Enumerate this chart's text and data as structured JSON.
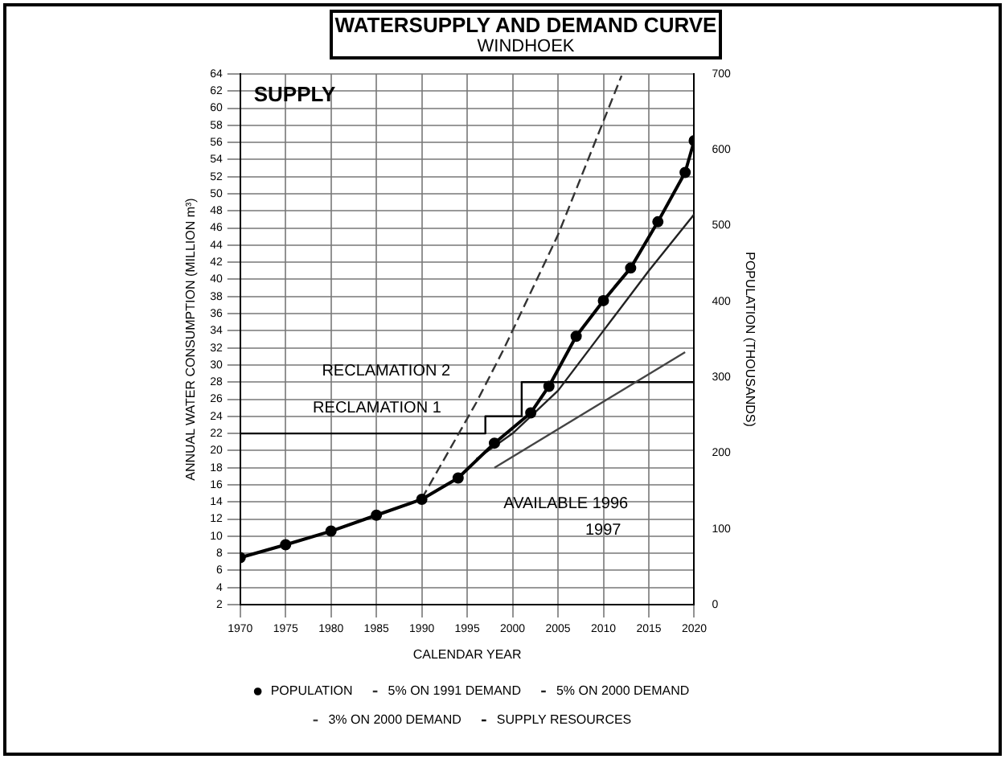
{
  "chart_data": {
    "type": "line",
    "title": "WATERSUPPLY AND DEMAND CURVE",
    "subtitle": "WINDHOEK",
    "xlabel": "CALENDAR YEAR",
    "ylabel": "ANNUAL WATER CONSUMPTION (MILLION m³)",
    "y2label": "POPULATION (THOUSANDS)",
    "xlim": [
      1970,
      2020
    ],
    "xticks": [
      1970,
      1975,
      1980,
      1985,
      1990,
      1995,
      2000,
      2005,
      2010,
      2015,
      2020
    ],
    "ylim": [
      2,
      64
    ],
    "yticks": [
      2,
      4,
      6,
      8,
      10,
      12,
      14,
      16,
      18,
      20,
      22,
      24,
      26,
      28,
      30,
      32,
      34,
      36,
      38,
      40,
      42,
      44,
      46,
      48,
      50,
      52,
      54,
      56,
      58,
      60,
      62,
      64
    ],
    "y2lim": [
      0,
      700
    ],
    "y2ticks": [
      0,
      100,
      200,
      300,
      400,
      500,
      600,
      700
    ],
    "grid": true,
    "legend": "bottom",
    "line_style": "solid",
    "series": [
      {
        "name": "POPULATION",
        "type": "line",
        "axis": "y2",
        "marker": "circle",
        "color": "#000000",
        "x": [
          1970,
          1975,
          1980,
          1985,
          1990,
          1994,
          1998,
          2002,
          2004,
          2007,
          2010,
          2013,
          2016,
          2019,
          2020
        ],
        "values": [
          62,
          79,
          97,
          118,
          139,
          167,
          213,
          253,
          288,
          354,
          401,
          444,
          505,
          570,
          612
        ]
      },
      {
        "name": "5% ON 1991 DEMAND",
        "type": "line",
        "line_style": "dashed",
        "color": "#333333",
        "x": [
          1990,
          1996,
          1999,
          2005,
          2012
        ],
        "values": [
          14.4,
          25.6,
          31.8,
          45.2,
          63.8
        ]
      },
      {
        "name": "5% ON 2000 DEMAND",
        "type": "line",
        "color": "#222222",
        "x": [
          1996,
          2000,
          2005,
          2010,
          2015,
          2020
        ],
        "values": [
          19,
          22,
          27,
          34,
          41,
          47.6
        ]
      },
      {
        "name": "3% ON 2000 DEMAND",
        "type": "line",
        "color": "#444444",
        "x": [
          1998,
          2019
        ],
        "values": [
          18,
          31.5
        ]
      },
      {
        "name": "SUPPLY RESOURCES",
        "type": "step",
        "color": "#000000",
        "x": [
          1970,
          1997,
          2001,
          2020
        ],
        "values": [
          22,
          24,
          28,
          28
        ]
      }
    ],
    "annotations": [
      "SUPPLY",
      "RECLAMATION 2",
      "RECLAMATION 1",
      "AVAILABLE 1996",
      "1997"
    ]
  }
}
